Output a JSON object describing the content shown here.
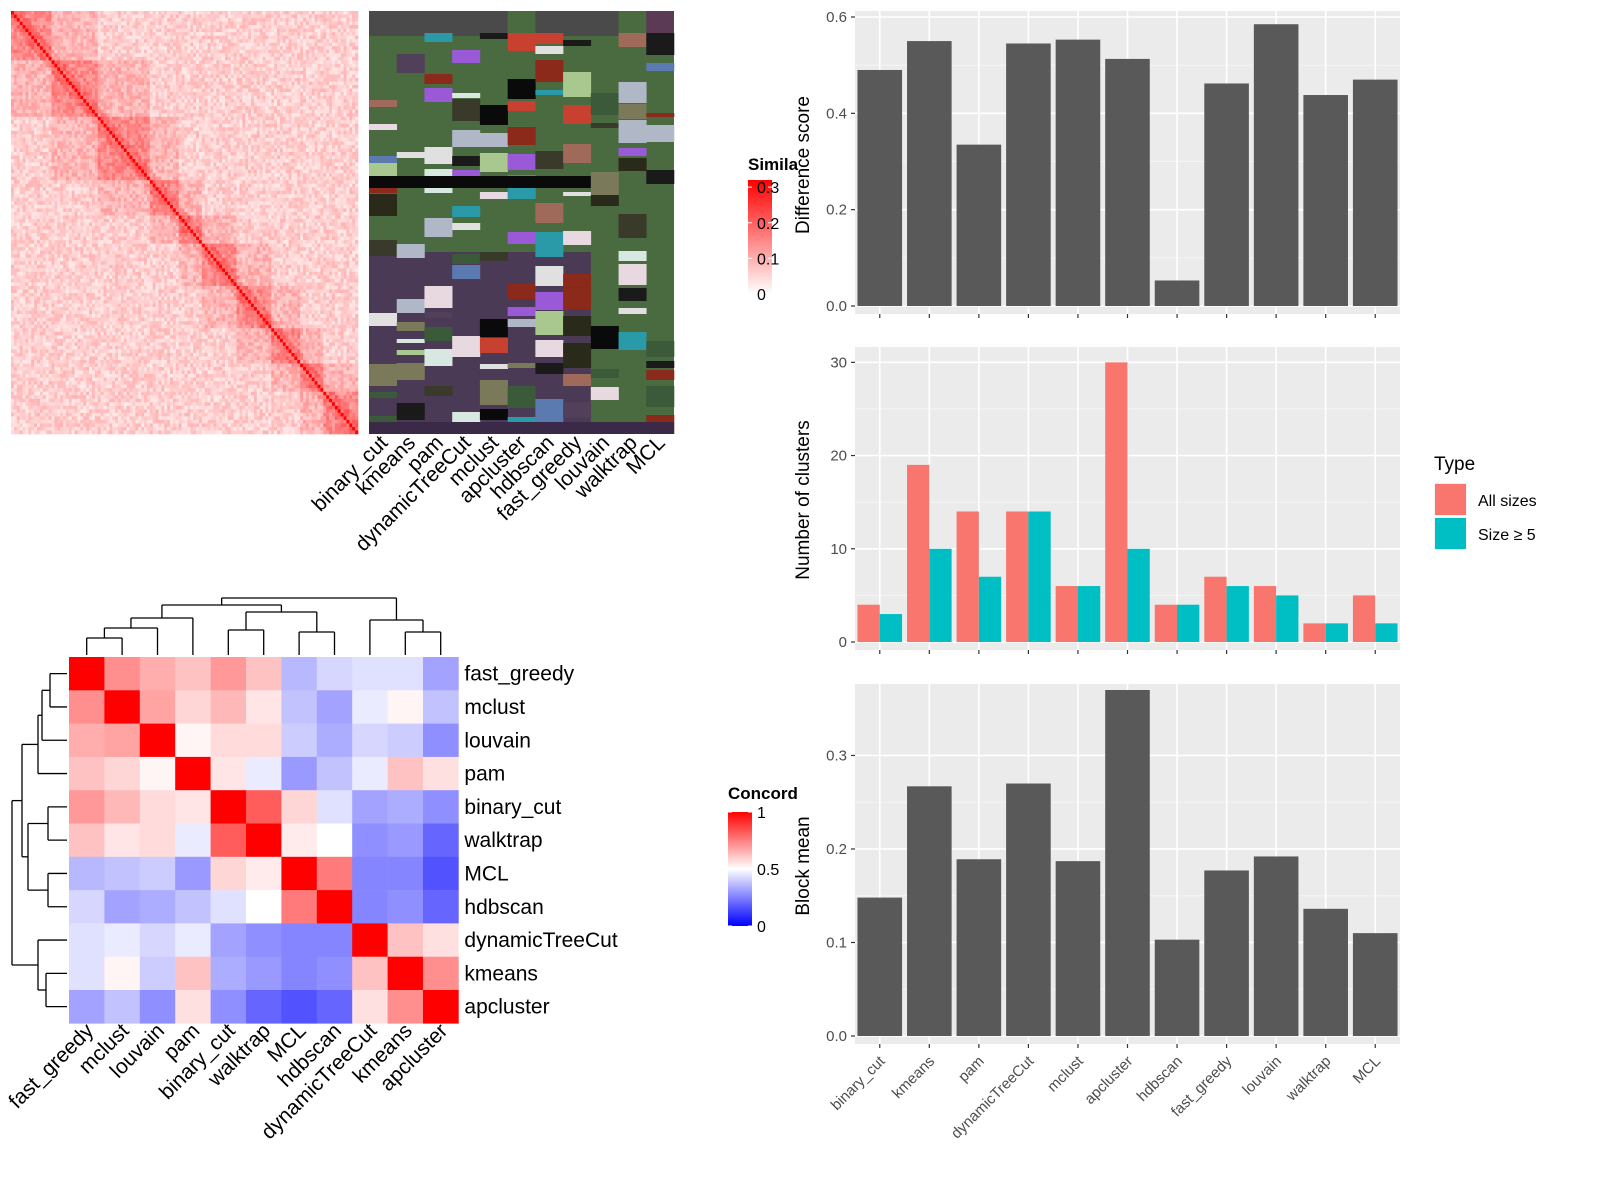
{
  "chart_data": [
    {
      "type": "heatmap",
      "name": "similarity-heatmap",
      "n_cells": 120,
      "legend": {
        "title": "Simila",
        "ticks": [
          0,
          0.1,
          0.2,
          0.3
        ],
        "tick_labels": [
          "0",
          "0.1",
          "0.2",
          "0.3"
        ],
        "colors": [
          "#ffffff",
          "#ff0000"
        ]
      }
    },
    {
      "type": "heatmap",
      "name": "cluster-assignment-heatmap",
      "columns": [
        "binary_cut",
        "kmeans",
        "pam",
        "dynamicTreeCut",
        "mclust",
        "apcluster",
        "hdbscan",
        "fast_greedy",
        "louvain",
        "walktrap",
        "MCL"
      ],
      "background_colors": [
        "#4a6b3f",
        "#4a3a55"
      ]
    },
    {
      "type": "heatmap",
      "name": "concordance-heatmap",
      "rows": [
        "fast_greedy",
        "mclust",
        "louvain",
        "pam",
        "binary_cut",
        "walktrap",
        "MCL",
        "hdbscan",
        "dynamicTreeCut",
        "kmeans",
        "apcluster"
      ],
      "columns": [
        "fast_greedy",
        "mclust",
        "louvain",
        "pam",
        "binary_cut",
        "walktrap",
        "MCL",
        "hdbscan",
        "dynamicTreeCut",
        "kmeans",
        "apcluster"
      ],
      "values": [
        [
          1.0,
          0.72,
          0.66,
          0.62,
          0.7,
          0.62,
          0.36,
          0.42,
          0.44,
          0.44,
          0.32
        ],
        [
          0.72,
          1.0,
          0.68,
          0.58,
          0.64,
          0.55,
          0.38,
          0.32,
          0.46,
          0.52,
          0.38
        ],
        [
          0.66,
          0.68,
          1.0,
          0.52,
          0.57,
          0.57,
          0.4,
          0.34,
          0.42,
          0.4,
          0.28
        ],
        [
          0.62,
          0.58,
          0.52,
          1.0,
          0.55,
          0.46,
          0.3,
          0.38,
          0.46,
          0.62,
          0.56
        ],
        [
          0.7,
          0.64,
          0.57,
          0.55,
          1.0,
          0.82,
          0.58,
          0.44,
          0.32,
          0.34,
          0.28
        ],
        [
          0.62,
          0.55,
          0.57,
          0.46,
          0.82,
          1.0,
          0.54,
          0.5,
          0.28,
          0.3,
          0.2
        ],
        [
          0.36,
          0.38,
          0.4,
          0.3,
          0.58,
          0.54,
          1.0,
          0.76,
          0.26,
          0.26,
          0.16
        ],
        [
          0.42,
          0.32,
          0.34,
          0.38,
          0.44,
          0.5,
          0.76,
          1.0,
          0.26,
          0.28,
          0.2
        ],
        [
          0.44,
          0.46,
          0.42,
          0.46,
          0.32,
          0.28,
          0.26,
          0.26,
          1.0,
          0.62,
          0.56
        ],
        [
          0.44,
          0.52,
          0.4,
          0.62,
          0.34,
          0.3,
          0.26,
          0.28,
          0.62,
          1.0,
          0.72
        ],
        [
          0.32,
          0.38,
          0.28,
          0.56,
          0.28,
          0.2,
          0.16,
          0.2,
          0.56,
          0.72,
          1.0
        ]
      ],
      "legend": {
        "title": "Concord",
        "ticks": [
          0,
          0.5,
          1
        ],
        "tick_labels": [
          "0",
          "0.5",
          "1"
        ],
        "colors": [
          "#0000ff",
          "#ffffff",
          "#ff0000"
        ]
      }
    },
    {
      "type": "bar",
      "name": "difference-score-chart",
      "categories": [
        "binary_cut",
        "kmeans",
        "pam",
        "dynamicTreeCut",
        "mclust",
        "apcluster",
        "hdbscan",
        "fast_greedy",
        "louvain",
        "walktrap",
        "MCL"
      ],
      "values": [
        0.49,
        0.55,
        0.335,
        0.545,
        0.553,
        0.513,
        0.053,
        0.462,
        0.585,
        0.438,
        0.47
      ],
      "ylabel": "Difference score",
      "ylim": [
        0,
        0.6
      ],
      "yticks": [
        0.0,
        0.2,
        0.4,
        0.6
      ],
      "ytick_labels": [
        "0.0",
        "0.2",
        "0.4",
        "0.6"
      ],
      "bar_color": "#595959",
      "panel_color": "#ebebeb",
      "grid": true
    },
    {
      "type": "bar",
      "name": "number-of-clusters-chart",
      "categories": [
        "binary_cut",
        "kmeans",
        "pam",
        "dynamicTreeCut",
        "mclust",
        "apcluster",
        "hdbscan",
        "fast_greedy",
        "louvain",
        "walktrap",
        "MCL"
      ],
      "series": [
        {
          "name": "All sizes",
          "color": "#f8766d",
          "values": [
            4,
            19,
            14,
            14,
            6,
            30,
            4,
            7,
            6,
            2,
            5
          ]
        },
        {
          "name": "Size ≥ 5",
          "color": "#00bfc4",
          "values": [
            3,
            10,
            7,
            14,
            6,
            10,
            4,
            6,
            5,
            2,
            2
          ]
        }
      ],
      "ylabel": "Number of clusters",
      "ylim": [
        0,
        31
      ],
      "yticks": [
        0,
        10,
        20,
        30
      ],
      "ytick_labels": [
        "0",
        "10",
        "20",
        "30"
      ],
      "legend": {
        "title": "Type",
        "placement": "right"
      },
      "panel_color": "#ebebeb",
      "grid": true
    },
    {
      "type": "bar",
      "name": "block-mean-chart",
      "categories": [
        "binary_cut",
        "kmeans",
        "pam",
        "dynamicTreeCut",
        "mclust",
        "apcluster",
        "hdbscan",
        "fast_greedy",
        "louvain",
        "walktrap",
        "MCL"
      ],
      "values": [
        0.148,
        0.267,
        0.189,
        0.27,
        0.187,
        0.37,
        0.103,
        0.177,
        0.192,
        0.136,
        0.11
      ],
      "ylabel": "Block mean",
      "ylim": [
        0,
        0.37
      ],
      "yticks": [
        0.0,
        0.1,
        0.2,
        0.3
      ],
      "ytick_labels": [
        "0.0",
        "0.1",
        "0.2",
        "0.3"
      ],
      "bar_color": "#595959",
      "panel_color": "#ebebeb",
      "grid": true
    }
  ]
}
